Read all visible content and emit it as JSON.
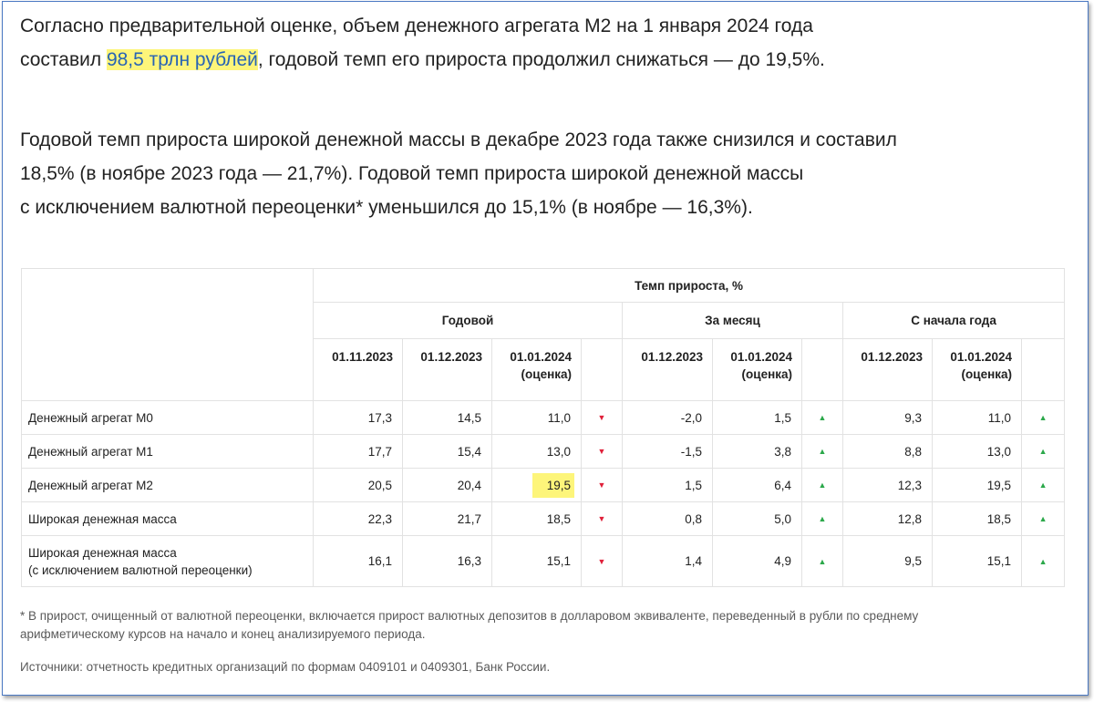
{
  "intro": {
    "line1": "Согласно предварительной оценке, объем денежного агрегата М2 на 1 января 2024 года",
    "line2_before": "составил ",
    "line2_highlight": "98,5 трлн рублей",
    "line2_after": ", годовой темп его прироста продолжил снижаться — до 19,5%."
  },
  "para2": {
    "line1": "Годовой темп прироста широкой денежной массы в декабре 2023 года также снизился и составил",
    "line2": "18,5% (в ноябре 2023 года — 21,7%). Годовой темп прироста широкой денежной массы",
    "line3": "с исключением валютной переоценки* уменьшился до 15,1% (в ноябре — 16,3%)."
  },
  "table": {
    "top_header": "Темп прироста, %",
    "groups": [
      "Годовой",
      "За месяц",
      "С начала года"
    ],
    "cols": {
      "annual": [
        "01.11.2023",
        "01.12.2023",
        "01.01.2024",
        "(оценка)"
      ],
      "month": [
        "01.12.2023",
        "01.01.2024",
        "(оценка)"
      ],
      "ytd": [
        "01.12.2023",
        "01.01.2024",
        "(оценка)"
      ]
    },
    "rows": [
      {
        "label": "Денежный агрегат М0",
        "label2": "",
        "a1": "17,3",
        "a2": "14,5",
        "a3": "11,0",
        "m1": "-2,0",
        "m2": "1,5",
        "y1": "9,3",
        "y2": "11,0"
      },
      {
        "label": "Денежный агрегат М1",
        "label2": "",
        "a1": "17,7",
        "a2": "15,4",
        "a3": "13,0",
        "m1": "-1,5",
        "m2": "3,8",
        "y1": "8,8",
        "y2": "13,0"
      },
      {
        "label": "Денежный агрегат М2",
        "label2": "",
        "a1": "20,5",
        "a2": "20,4",
        "a3": "19,5",
        "m1": "1,5",
        "m2": "6,4",
        "y1": "12,3",
        "y2": "19,5"
      },
      {
        "label": "Широкая денежная масса",
        "label2": "",
        "a1": "22,3",
        "a2": "21,7",
        "a3": "18,5",
        "m1": "0,8",
        "m2": "5,0",
        "y1": "12,8",
        "y2": "18,5"
      },
      {
        "label": "Широкая денежная масса",
        "label2": "(с исключением валютной переоценки)",
        "a1": "16,1",
        "a2": "16,3",
        "a3": "15,1",
        "m1": "1,4",
        "m2": "4,9",
        "y1": "9,5",
        "y2": "15,1"
      }
    ],
    "arrow_down": "▼",
    "arrow_up": "▲"
  },
  "notes": {
    "footnote_line1": "* В прирост, очищенный от валютной переоценки, включается прирост валютных депозитов в долларовом эквиваленте, переведенный в рубли по среднему",
    "footnote_line2": "арифметическому курсов на начало и конец анализируемого периода.",
    "sources": "Источники: отчетность кредитных организаций по формам 0409101 и 0409301, Банк России."
  },
  "colors": {
    "highlight": "#fdf57a",
    "link_text": "#2864b4",
    "arrow_down": "#e0203a",
    "arrow_up": "#2ba84a",
    "frame_border": "#4a78c2"
  }
}
